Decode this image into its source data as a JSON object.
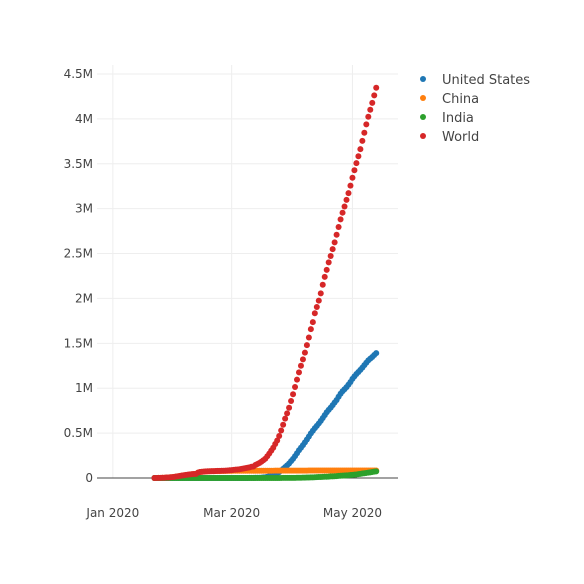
{
  "chart_data": {
    "type": "scatter",
    "title": "",
    "xlabel": "",
    "ylabel": "",
    "x_start": "2020-01-22",
    "x_ticks": [
      {
        "label": "Jan 2020",
        "value": "2020-01-01"
      },
      {
        "label": "Mar 2020",
        "value": "2020-03-01"
      },
      {
        "label": "May 2020",
        "value": "2020-05-01"
      }
    ],
    "xlim": [
      "2019-12-24",
      "2020-05-24"
    ],
    "ylim": [
      0,
      4600000
    ],
    "y_ticks": [
      {
        "label": "0",
        "value": 0
      },
      {
        "label": "0.5M",
        "value": 500000
      },
      {
        "label": "1M",
        "value": 1000000
      },
      {
        "label": "1.5M",
        "value": 1500000
      },
      {
        "label": "2M",
        "value": 2000000
      },
      {
        "label": "2.5M",
        "value": 2500000
      },
      {
        "label": "3M",
        "value": 3000000
      },
      {
        "label": "3.5M",
        "value": 3500000
      },
      {
        "label": "4M",
        "value": 4000000
      },
      {
        "label": "4.5M",
        "value": 4500000
      }
    ],
    "grid": true,
    "legend_position": "top-right",
    "series": [
      {
        "name": "United States",
        "color": "#1f77b4",
        "values": [
          1,
          1,
          2,
          2,
          5,
          5,
          5,
          5,
          5,
          7,
          8,
          8,
          11,
          11,
          11,
          11,
          11,
          11,
          11,
          11,
          12,
          12,
          13,
          13,
          13,
          13,
          13,
          13,
          13,
          13,
          15,
          15,
          15,
          51,
          51,
          57,
          58,
          60,
          68,
          74,
          98,
          118,
          149,
          217,
          262,
          402,
          518,
          583,
          959,
          1281,
          1663,
          2179,
          2727,
          3499,
          4632,
          6421,
          7786,
          13680,
          19101,
          25493,
          33276,
          43847,
          53740,
          65778,
          83836,
          101657,
          121465,
          140909,
          161831,
          188172,
          213242,
          243622,
          275367,
          308650,
          336802,
          366317,
          397121,
          428654,
          462780,
          496535,
          526396,
          555313,
          580619,
          607670,
          636350,
          667592,
          699706,
          732197,
          758809,
          784326,
          811865,
          840351,
          869170,
          905358,
          938154,
          965785,
          988197,
          1012582,
          1039909,
          1069424,
          1103461,
          1132539,
          1158040,
          1180375,
          1204351,
          1229331,
          1257023,
          1283929,
          1309550,
          1329260,
          1347881,
          1369376,
          1390406
        ]
      },
      {
        "name": "China",
        "color": "#ff7f0e",
        "values": [
          548,
          643,
          920,
          1406,
          2075,
          2877,
          5509,
          6087,
          8141,
          9802,
          11891,
          16630,
          19716,
          23707,
          27440,
          30587,
          34110,
          36814,
          39829,
          42354,
          44386,
          44759,
          59895,
          66358,
          68413,
          70513,
          72434,
          74211,
          74619,
          75077,
          75550,
          77001,
          77022,
          77241,
          77754,
          78166,
          78600,
          78928,
          79356,
          79932,
          80136,
          80261,
          80386,
          80537,
          80690,
          80770,
          80823,
          80860,
          80887,
          80921,
          80932,
          80945,
          80977,
          81003,
          81033,
          81058,
          81102,
          81156,
          81250,
          81305,
          81435,
          81498,
          81591,
          81661,
          81782,
          81897,
          81999,
          82122,
          82198,
          82279,
          82361,
          82432,
          82511,
          82543,
          82602,
          82665,
          82718,
          82809,
          82883,
          82941,
          83014,
          83134,
          83213,
          83306,
          83356,
          83403,
          83760,
          83787,
          83805,
          83817,
          83853,
          83868,
          83884,
          83899,
          83909,
          83912,
          83918,
          83940,
          83944,
          83956,
          83959,
          83959,
          83964,
          83966,
          83968,
          83970,
          83975,
          83976,
          83990,
          83990,
          83990,
          83990,
          84010
        ]
      },
      {
        "name": "India",
        "color": "#2ca02c",
        "values": [
          0,
          0,
          0,
          0,
          0,
          0,
          0,
          0,
          0,
          1,
          1,
          1,
          2,
          3,
          3,
          3,
          3,
          3,
          3,
          3,
          3,
          3,
          3,
          3,
          3,
          3,
          3,
          3,
          3,
          3,
          3,
          3,
          3,
          3,
          3,
          3,
          3,
          3,
          3,
          3,
          3,
          5,
          5,
          28,
          30,
          31,
          34,
          39,
          43,
          56,
          62,
          73,
          82,
          102,
          113,
          119,
          142,
          156,
          194,
          244,
          330,
          396,
          499,
          536,
          657,
          727,
          887,
          987,
          1024,
          1251,
          1397,
          1998,
          2543,
          2567,
          3082,
          3588,
          4778,
          5311,
          5916,
          6725,
          7598,
          8446,
          9205,
          10453,
          11487,
          12322,
          13430,
          14352,
          15722,
          17615,
          18539,
          20080,
          21370,
          23077,
          24530,
          26283,
          27890,
          29451,
          31324,
          33062,
          34863,
          37257,
          39699,
          42505,
          46437,
          49400,
          52987,
          56351,
          59695,
          62808,
          67161,
          70768,
          74292
        ]
      },
      {
        "name": "World",
        "color": "#d62728",
        "values": [
          555,
          654,
          941,
          1434,
          2118,
          2927,
          5578,
          6166,
          8234,
          9927,
          12038,
          16787,
          19881,
          23892,
          27635,
          30794,
          34391,
          37120,
          40150,
          42762,
          44802,
          45221,
          60368,
          66885,
          69030,
          71224,
          73258,
          75136,
          75639,
          76197,
          76819,
          78572,
          78958,
          79561,
          80406,
          81388,
          82746,
          84112,
          86011,
          88369,
          90306,
          92840,
          95120,
          97886,
          101801,
          105847,
          109821,
          113590,
          118620,
          125875,
          128352,
          145205,
          156101,
          167454,
          181574,
          197102,
          214821,
          242570,
          272208,
          304507,
          336953,
          378235,
          418045,
          467653,
          529591,
          593291,
          660706,
          720140,
          782389,
          857487,
          932605,
          1013157,
          1095917,
          1176060,
          1249754,
          1321481,
          1396476,
          1479804,
          1565278,
          1657526,
          1735650,
          1834721,
          1904838,
          1976191,
          2056054,
          2152437,
          2240190,
          2317759,
          2401378,
          2472259,
          2549123,
          2624074,
          2708885,
          2795731,
          2881140,
          2955033,
          3023722,
          3097229,
          3172287,
          3256846,
          3343777,
          3427343,
          3506729,
          3583055,
          3662691,
          3755341,
          3845718,
          3938064,
          4024009,
          4101699,
          4177502,
          4261747,
          4347018
        ]
      }
    ]
  }
}
